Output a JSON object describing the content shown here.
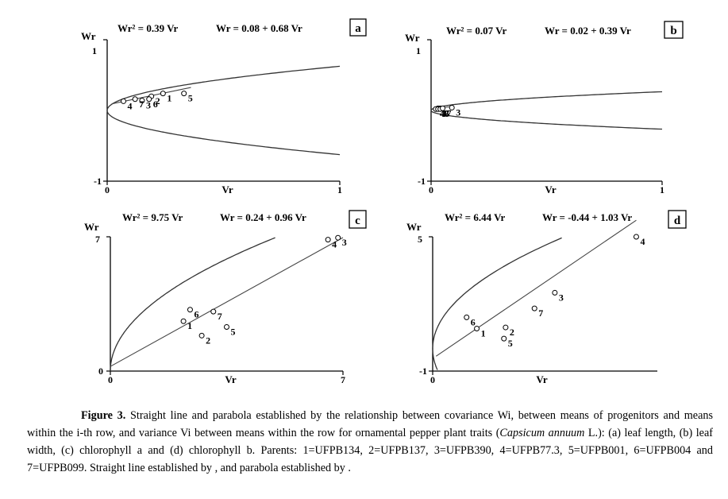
{
  "chart_data": [
    {
      "panel": "a",
      "type": "scatter",
      "equations": [
        "Wr² = 0.39 Vr",
        "Wr = 0.08 + 0.68 Vr"
      ],
      "xlabel": "Vr",
      "ylabel": "Wr",
      "xlim": [
        0,
        1
      ],
      "ylim": [
        -1,
        1
      ],
      "xticks": [
        "0",
        "1"
      ],
      "yticks": [
        "-1",
        "1"
      ],
      "parabola_coef": 0.39,
      "line": {
        "intercept": 0.08,
        "slope": 0.68
      },
      "line_x": [
        0.02,
        0.36
      ],
      "points": [
        {
          "label": "1",
          "x": 0.24,
          "y": 0.24
        },
        {
          "label": "2",
          "x": 0.19,
          "y": 0.2
        },
        {
          "label": "3",
          "x": 0.15,
          "y": 0.14
        },
        {
          "label": "4",
          "x": 0.07,
          "y": 0.13
        },
        {
          "label": "5",
          "x": 0.33,
          "y": 0.24
        },
        {
          "label": "6",
          "x": 0.18,
          "y": 0.16
        },
        {
          "label": "7",
          "x": 0.12,
          "y": 0.16
        }
      ]
    },
    {
      "panel": "b",
      "type": "scatter",
      "equations": [
        "Wr² = 0.07 Vr",
        "Wr = 0.02 + 0.39 Vr"
      ],
      "xlabel": "Vr",
      "ylabel": "Wr",
      "xlim": [
        0,
        1
      ],
      "ylim": [
        -1,
        1
      ],
      "xticks": [
        "0",
        "1"
      ],
      "yticks": [
        "-1",
        "1"
      ],
      "parabola_coef": 0.07,
      "line": {
        "intercept": 0.02,
        "slope": 0.39
      },
      "line_x": [
        0.01,
        0.1
      ],
      "points": [
        {
          "label": "1",
          "x": 0.03,
          "y": 0.03
        },
        {
          "label": "2",
          "x": 0.04,
          "y": 0.03
        },
        {
          "label": "3",
          "x": 0.09,
          "y": 0.04
        },
        {
          "label": "4",
          "x": 0.02,
          "y": 0.02
        },
        {
          "label": "5",
          "x": 0.03,
          "y": 0.02
        },
        {
          "label": "6",
          "x": 0.04,
          "y": 0.02
        },
        {
          "label": "7",
          "x": 0.05,
          "y": 0.03
        }
      ]
    },
    {
      "panel": "c",
      "type": "scatter",
      "equations": [
        "Wr² = 9.75 Vr",
        "Wr = 0.24 + 0.96 Vr"
      ],
      "xlabel": "Vr",
      "ylabel": "Wr",
      "xlim": [
        0,
        7
      ],
      "ylim": [
        0,
        7
      ],
      "xticks": [
        "0",
        "7"
      ],
      "yticks": [
        "0",
        "7"
      ],
      "parabola_coef": 9.75,
      "line": {
        "intercept": 0.24,
        "slope": 0.96
      },
      "line_x": [
        0,
        7
      ],
      "points": [
        {
          "label": "1",
          "x": 2.2,
          "y": 2.6
        },
        {
          "label": "2",
          "x": 2.75,
          "y": 1.85
        },
        {
          "label": "3",
          "x": 6.85,
          "y": 6.95
        },
        {
          "label": "4",
          "x": 6.55,
          "y": 6.85
        },
        {
          "label": "5",
          "x": 3.5,
          "y": 2.3
        },
        {
          "label": "6",
          "x": 2.4,
          "y": 3.2
        },
        {
          "label": "7",
          "x": 3.1,
          "y": 3.1
        }
      ]
    },
    {
      "panel": "d",
      "type": "scatter",
      "equations": [
        "Wr² = 6.44 Vr",
        "Wr = -0.44 + 1.03 Vr"
      ],
      "xlabel": "Vr",
      "ylabel": "Wr",
      "xlim": [
        0,
        6.2
      ],
      "ylim": [
        -1,
        5
      ],
      "xticks": [
        "0"
      ],
      "yticks": [
        "-1",
        "5"
      ],
      "parabola_coef": 6.44,
      "line": {
        "intercept": -0.44,
        "slope": 1.03
      },
      "line_x": [
        0.1,
        6.0
      ],
      "points": [
        {
          "label": "1",
          "x": 1.3,
          "y": 0.9
        },
        {
          "label": "2",
          "x": 2.15,
          "y": 0.95
        },
        {
          "label": "3",
          "x": 3.6,
          "y": 2.5
        },
        {
          "label": "4",
          "x": 6.0,
          "y": 5.0
        },
        {
          "label": "5",
          "x": 2.1,
          "y": 0.45
        },
        {
          "label": "6",
          "x": 1.0,
          "y": 1.4
        },
        {
          "label": "7",
          "x": 3.0,
          "y": 1.8
        }
      ]
    }
  ],
  "caption": {
    "label": "Figure 3.",
    "part1": " Straight line and parabola established by the relationship between covariance Wi, between means of progenitors and means within the i-th row, and variance Vi between means within the row for ornamental pepper plant traits (",
    "species": "Capsicum annuum",
    "part2": " L.): (a) leaf length, (b) leaf width, (c) chlorophyll a and (d) chlorophyll b. Parents: 1=UFPB134, 2=UFPB137, 3=UFPB390, 4=UFPB77.3, 5=UFPB001, 6=UFPB004 and 7=UFPB099. Straight line established by  , and parabola established by  ."
  }
}
